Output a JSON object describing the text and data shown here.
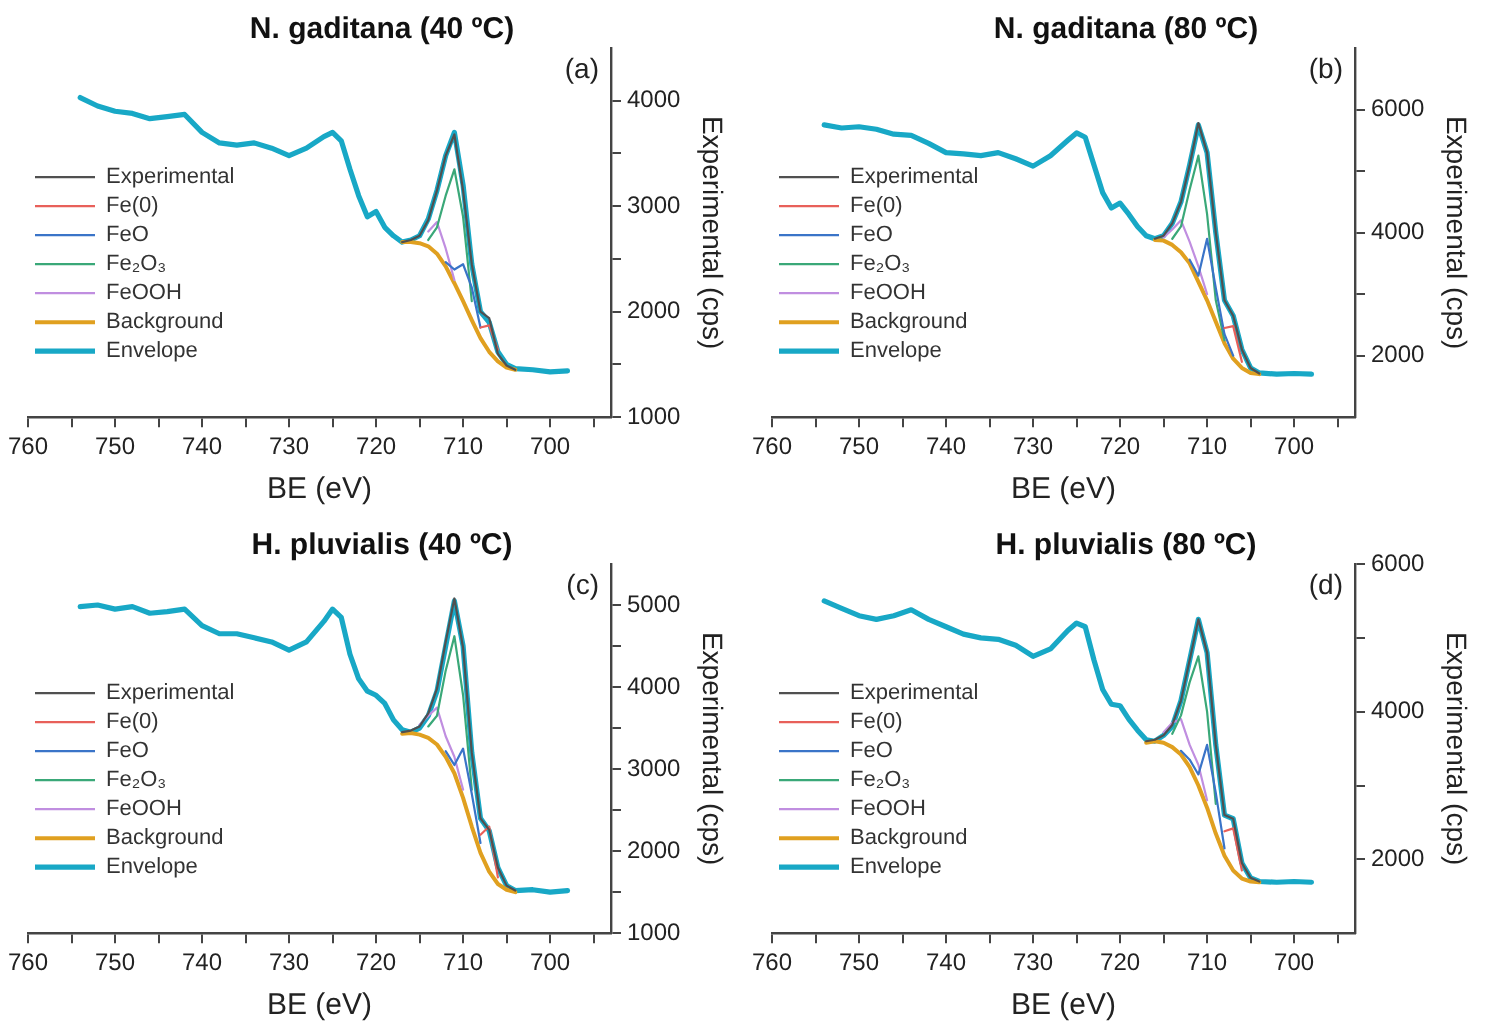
{
  "chart_data": [
    {
      "type": "line",
      "title": "N. gaditana (40 ºC)",
      "xlabel": "BE (eV)",
      "ylabel": "Experimental (cps)",
      "annotations": [
        "(a)"
      ],
      "xlim": [
        760,
        693
      ],
      "xticks": [
        760,
        {
          "value": 755,
          "label": null
        },
        750,
        {
          "value": 745,
          "label": null
        },
        740,
        {
          "value": 735,
          "label": null
        },
        730,
        {
          "value": 725,
          "label": null
        },
        720,
        {
          "value": 715,
          "label": null
        },
        710,
        {
          "value": 705,
          "label": null
        },
        700,
        {
          "value": 695,
          "label": null
        }
      ],
      "ylim": [
        1000,
        4500
      ],
      "yticks": [
        1000,
        {
          "value": 1500,
          "label": null
        },
        2000,
        {
          "value": 2500,
          "label": null
        },
        3000,
        {
          "value": 3500,
          "label": null
        },
        4000
      ],
      "grid": false,
      "legend": "left",
      "marker": "none",
      "line_style": "solid",
      "series": [
        {
          "name": "Experimental",
          "color": "#505050",
          "x": [
            717,
            716,
            715,
            714,
            713,
            712,
            711,
            710,
            709,
            708,
            707,
            706,
            705,
            704
          ],
          "values": [
            2660,
            2680,
            2720,
            2870,
            3150,
            3480,
            3680,
            3150,
            2450,
            2000,
            1940,
            1600,
            1490,
            1450
          ]
        },
        {
          "name": "Fe(0)",
          "color": "#e8605a",
          "x": [
            708,
            707,
            706
          ],
          "values": [
            1850,
            1870,
            1640
          ]
        },
        {
          "name": "FeO",
          "color": "#3a74c8",
          "x": [
            712,
            711,
            710,
            709,
            708
          ],
          "values": [
            2470,
            2400,
            2450,
            2230,
            1850
          ]
        },
        {
          "name": "Fe₂O₃",
          "color": "#3aa878",
          "x": [
            714,
            713,
            712,
            711,
            710,
            709
          ],
          "values": [
            2680,
            2800,
            3100,
            3350,
            2900,
            2100
          ]
        },
        {
          "name": "FeOOH",
          "color": "#c08ee0",
          "x": [
            714,
            713,
            712,
            711
          ],
          "values": [
            2760,
            2850,
            2600,
            2300
          ]
        },
        {
          "name": "Background",
          "color": "#e0a020",
          "x": [
            717,
            716,
            715,
            714,
            713,
            712,
            711,
            710,
            709,
            708,
            707,
            706,
            705,
            704
          ],
          "values": [
            2660,
            2660,
            2650,
            2620,
            2550,
            2430,
            2270,
            2100,
            1920,
            1750,
            1620,
            1530,
            1470,
            1450
          ]
        },
        {
          "name": "Envelope",
          "color": "#18a8c6",
          "x": [
            754,
            752,
            750,
            748,
            746,
            744,
            742,
            740,
            738,
            736,
            734,
            732,
            730,
            728,
            726,
            725,
            724,
            723,
            722,
            721,
            720,
            719,
            718,
            717,
            716,
            715,
            714,
            713,
            712,
            711,
            710,
            709,
            708,
            707,
            706,
            705,
            704,
            702,
            700,
            698
          ],
          "values": [
            4030,
            3950,
            3900,
            3880,
            3830,
            3850,
            3870,
            3700,
            3600,
            3580,
            3600,
            3550,
            3480,
            3550,
            3660,
            3700,
            3620,
            3350,
            3100,
            2900,
            2950,
            2800,
            2720,
            2660,
            2680,
            2720,
            2880,
            3150,
            3480,
            3700,
            3200,
            2450,
            2000,
            1900,
            1620,
            1500,
            1460,
            1450,
            1430,
            1440
          ]
        }
      ]
    },
    {
      "type": "line",
      "title": "N. gaditana (80 ºC)",
      "xlabel": "BE (eV)",
      "ylabel": "Experimental (cps)",
      "annotations": [
        "(b)"
      ],
      "xlim": [
        760,
        693
      ],
      "xticks": [
        760,
        {
          "value": 755,
          "label": null
        },
        750,
        {
          "value": 745,
          "label": null
        },
        740,
        {
          "value": 735,
          "label": null
        },
        730,
        {
          "value": 725,
          "label": null
        },
        720,
        {
          "value": 715,
          "label": null
        },
        710,
        {
          "value": 705,
          "label": null
        },
        700,
        {
          "value": 695,
          "label": null
        }
      ],
      "ylim": [
        1000,
        7000
      ],
      "yticks": [
        2000,
        {
          "value": 3000,
          "label": null
        },
        4000,
        {
          "value": 5000,
          "label": null
        },
        6000
      ],
      "grid": false,
      "legend": "left",
      "marker": "none",
      "line_style": "solid",
      "series": [
        {
          "name": "Experimental",
          "color": "#505050",
          "x": [
            716,
            715,
            714,
            713,
            712,
            711,
            710,
            709,
            708,
            707,
            706,
            705,
            704
          ],
          "values": [
            3900,
            3950,
            4150,
            4500,
            5100,
            5780,
            5300,
            4000,
            2900,
            2650,
            2100,
            1800,
            1710
          ]
        },
        {
          "name": "Fe(0)",
          "color": "#e8605a",
          "x": [
            708,
            707,
            706
          ],
          "values": [
            2450,
            2480,
            1900
          ]
        },
        {
          "name": "FeO",
          "color": "#3a74c8",
          "x": [
            712,
            711,
            710,
            709,
            708,
            707
          ],
          "values": [
            3560,
            3300,
            3900,
            3100,
            2350,
            2000
          ]
        },
        {
          "name": "Fe₂O₃",
          "color": "#3aa878",
          "x": [
            714,
            713,
            712,
            711,
            710,
            709,
            708
          ],
          "values": [
            3900,
            4100,
            4700,
            5250,
            4300,
            2900,
            2250
          ]
        },
        {
          "name": "FeOOH",
          "color": "#c08ee0",
          "x": [
            715,
            714,
            713,
            712,
            711,
            710
          ],
          "values": [
            3920,
            4050,
            4200,
            3850,
            3450,
            3000
          ]
        },
        {
          "name": "Background",
          "color": "#e0a020",
          "x": [
            716,
            715,
            714,
            713,
            712,
            711,
            710,
            709,
            708,
            707,
            706,
            705,
            704
          ],
          "values": [
            3880,
            3870,
            3800,
            3680,
            3500,
            3200,
            2900,
            2550,
            2200,
            1950,
            1800,
            1720,
            1700
          ]
        },
        {
          "name": "Envelope",
          "color": "#18a8c6",
          "x": [
            754,
            752,
            750,
            748,
            746,
            744,
            742,
            740,
            738,
            736,
            734,
            732,
            730,
            728,
            726,
            725,
            724,
            723,
            722,
            721,
            720,
            719,
            718,
            717,
            716,
            715,
            714,
            713,
            712,
            711,
            710,
            709,
            708,
            707,
            706,
            705,
            704,
            702,
            700,
            698
          ],
          "values": [
            5750,
            5700,
            5720,
            5680,
            5600,
            5580,
            5450,
            5300,
            5280,
            5250,
            5300,
            5200,
            5080,
            5250,
            5500,
            5620,
            5550,
            5100,
            4650,
            4400,
            4480,
            4300,
            4100,
            3950,
            3900,
            3950,
            4150,
            4500,
            5100,
            5750,
            5300,
            4000,
            2900,
            2650,
            2100,
            1800,
            1720,
            1700,
            1710,
            1700
          ]
        }
      ]
    },
    {
      "type": "line",
      "title": "H. pluvialis (40 ºC)",
      "xlabel": "BE (eV)",
      "ylabel": "Experimental (cps)",
      "annotations": [
        "(c)"
      ],
      "xlim": [
        760,
        693
      ],
      "xticks": [
        760,
        {
          "value": 755,
          "label": null
        },
        750,
        {
          "value": 745,
          "label": null
        },
        740,
        {
          "value": 735,
          "label": null
        },
        730,
        {
          "value": 725,
          "label": null
        },
        720,
        {
          "value": 715,
          "label": null
        },
        710,
        {
          "value": 705,
          "label": null
        },
        700,
        {
          "value": 695,
          "label": null
        }
      ],
      "ylim": [
        1000,
        5500
      ],
      "yticks": [
        1000,
        {
          "value": 1500,
          "label": null
        },
        2000,
        {
          "value": 2500,
          "label": null
        },
        3000,
        {
          "value": 3500,
          "label": null
        },
        4000,
        {
          "value": 4500,
          "label": null
        },
        5000
      ],
      "grid": false,
      "legend": "left",
      "marker": "none",
      "line_style": "solid",
      "series": [
        {
          "name": "Experimental",
          "color": "#505050",
          "x": [
            717,
            716,
            715,
            714,
            713,
            712,
            711,
            710,
            709,
            708,
            707,
            706,
            705,
            704
          ],
          "values": [
            3450,
            3470,
            3520,
            3680,
            3980,
            4550,
            5080,
            4480,
            3200,
            2400,
            2260,
            1800,
            1580,
            1520
          ]
        },
        {
          "name": "Fe(0)",
          "color": "#e8605a",
          "x": [
            708,
            707,
            706
          ],
          "values": [
            2200,
            2300,
            1680
          ]
        },
        {
          "name": "FeO",
          "color": "#3a74c8",
          "x": [
            712,
            711,
            710,
            709,
            708
          ],
          "values": [
            3220,
            3050,
            3250,
            2700,
            2100
          ]
        },
        {
          "name": "Fe₂O₃",
          "color": "#3aa878",
          "x": [
            714,
            713,
            712,
            711,
            710,
            709
          ],
          "values": [
            3520,
            3650,
            4200,
            4620,
            3900,
            2750
          ]
        },
        {
          "name": "FeOOH",
          "color": "#c08ee0",
          "x": [
            715,
            714,
            713,
            712,
            711,
            710
          ],
          "values": [
            3540,
            3650,
            3750,
            3400,
            3150,
            2750
          ]
        },
        {
          "name": "Background",
          "color": "#e0a020",
          "x": [
            717,
            716,
            715,
            714,
            713,
            712,
            711,
            710,
            709,
            708,
            707,
            706,
            705,
            704
          ],
          "values": [
            3430,
            3440,
            3420,
            3380,
            3300,
            3150,
            2950,
            2650,
            2300,
            1980,
            1750,
            1600,
            1530,
            1500
          ]
        },
        {
          "name": "Envelope",
          "color": "#18a8c6",
          "x": [
            754,
            752,
            750,
            748,
            746,
            744,
            742,
            740,
            738,
            736,
            734,
            732,
            730,
            728,
            726,
            725,
            724,
            723,
            722,
            721,
            720,
            719,
            718,
            717,
            716,
            715,
            714,
            713,
            712,
            711,
            710,
            709,
            708,
            707,
            706,
            705,
            704,
            702,
            700,
            698
          ],
          "values": [
            4980,
            5000,
            4950,
            4980,
            4900,
            4920,
            4950,
            4750,
            4650,
            4650,
            4600,
            4550,
            4450,
            4550,
            4800,
            4950,
            4850,
            4400,
            4100,
            3950,
            3900,
            3800,
            3600,
            3480,
            3450,
            3500,
            3650,
            3950,
            4500,
            5050,
            4500,
            3200,
            2400,
            2250,
            1800,
            1580,
            1520,
            1530,
            1500,
            1520
          ]
        }
      ]
    },
    {
      "type": "line",
      "title": "H. pluvialis (80 ºC)",
      "xlabel": "BE (eV)",
      "ylabel": "Experimental (cps)",
      "annotations": [
        "(d)"
      ],
      "xlim": [
        760,
        693
      ],
      "xticks": [
        760,
        {
          "value": 755,
          "label": null
        },
        750,
        {
          "value": 745,
          "label": null
        },
        740,
        {
          "value": 735,
          "label": null
        },
        730,
        {
          "value": 725,
          "label": null
        },
        720,
        {
          "value": 715,
          "label": null
        },
        710,
        {
          "value": 705,
          "label": null
        },
        700,
        {
          "value": 695,
          "label": null
        }
      ],
      "ylim": [
        1000,
        6000
      ],
      "yticks": [
        2000,
        {
          "value": 3000,
          "label": null
        },
        4000,
        {
          "value": 5000,
          "label": null
        },
        6000
      ],
      "grid": false,
      "legend": "left",
      "marker": "none",
      "line_style": "solid",
      "series": [
        {
          "name": "Experimental",
          "color": "#505050",
          "x": [
            717,
            716,
            715,
            714,
            713,
            712,
            711,
            710,
            709,
            708,
            707,
            706,
            705,
            704
          ],
          "values": [
            3600,
            3620,
            3680,
            3820,
            4150,
            4700,
            5250,
            4800,
            3550,
            2600,
            2550,
            1950,
            1750,
            1700
          ]
        },
        {
          "name": "Fe(0)",
          "color": "#e8605a",
          "x": [
            708,
            707,
            706
          ],
          "values": [
            2380,
            2420,
            1850
          ]
        },
        {
          "name": "FeO",
          "color": "#3a74c8",
          "x": [
            713,
            712,
            711,
            710,
            709,
            708
          ],
          "values": [
            3470,
            3350,
            3150,
            3550,
            2900,
            2150
          ]
        },
        {
          "name": "Fe₂O₃",
          "color": "#3aa878",
          "x": [
            714,
            713,
            712,
            711,
            710,
            709
          ],
          "values": [
            3700,
            3950,
            4400,
            4750,
            4000,
            2750
          ]
        },
        {
          "name": "FeOOH",
          "color": "#c08ee0",
          "x": [
            715,
            714,
            713,
            712,
            711,
            710
          ],
          "values": [
            3720,
            3850,
            3900,
            3550,
            3280,
            2800
          ]
        },
        {
          "name": "Background",
          "color": "#e0a020",
          "x": [
            717,
            716,
            715,
            714,
            713,
            712,
            711,
            710,
            709,
            708,
            707,
            706,
            705,
            704
          ],
          "values": [
            3580,
            3600,
            3580,
            3520,
            3420,
            3250,
            3000,
            2700,
            2350,
            2050,
            1850,
            1740,
            1700,
            1690
          ]
        },
        {
          "name": "Envelope",
          "color": "#18a8c6",
          "x": [
            754,
            752,
            750,
            748,
            746,
            744,
            742,
            740,
            738,
            736,
            734,
            732,
            730,
            728,
            726,
            725,
            724,
            723,
            722,
            721,
            720,
            719,
            718,
            717,
            716,
            715,
            714,
            713,
            712,
            711,
            710,
            709,
            708,
            707,
            706,
            705,
            704,
            702,
            700,
            698
          ],
          "values": [
            5500,
            5400,
            5300,
            5250,
            5300,
            5380,
            5250,
            5150,
            5050,
            5000,
            4980,
            4900,
            4750,
            4850,
            5100,
            5200,
            5150,
            4700,
            4300,
            4100,
            4080,
            3900,
            3750,
            3620,
            3600,
            3680,
            3800,
            4150,
            4700,
            5250,
            4800,
            3550,
            2600,
            2550,
            1950,
            1750,
            1700,
            1690,
            1700,
            1690
          ]
        }
      ]
    }
  ]
}
